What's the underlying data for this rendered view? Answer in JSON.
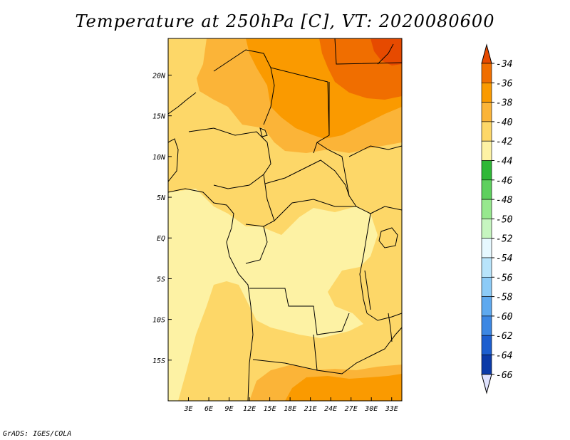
{
  "title": "Temperature at 250hPa [C], VT: 2020080600",
  "credit": "GrADS: IGES/COLA",
  "map": {
    "lon_range": [
      0,
      34.5
    ],
    "lat_range": [
      -20,
      24.5
    ],
    "lon_ticks": [
      {
        "v": 3,
        "label": "3E"
      },
      {
        "v": 6,
        "label": "6E"
      },
      {
        "v": 9,
        "label": "9E"
      },
      {
        "v": 12,
        "label": "12E"
      },
      {
        "v": 15,
        "label": "15E"
      },
      {
        "v": 18,
        "label": "18E"
      },
      {
        "v": 21,
        "label": "21E"
      },
      {
        "v": 24,
        "label": "24E"
      },
      {
        "v": 27,
        "label": "27E"
      },
      {
        "v": 30,
        "label": "30E"
      },
      {
        "v": 33,
        "label": "33E"
      }
    ],
    "lat_ticks": [
      {
        "v": 20,
        "label": "20N"
      },
      {
        "v": 15,
        "label": "15N"
      },
      {
        "v": 10,
        "label": "10N"
      },
      {
        "v": 5,
        "label": "5N"
      },
      {
        "v": 0,
        "label": "EQ"
      },
      {
        "v": -5,
        "label": "5S"
      },
      {
        "v": -10,
        "label": "10S"
      },
      {
        "v": -15,
        "label": "15S"
      }
    ]
  },
  "colorbar": {
    "labels": [
      "-34",
      "-36",
      "-38",
      "-40",
      "-42",
      "-44",
      "-46",
      "-48",
      "-50",
      "-52",
      "-54",
      "-56",
      "-58",
      "-60",
      "-62",
      "-64",
      "-66"
    ],
    "colors": [
      "#e64a00",
      "#f06e00",
      "#fa9a00",
      "#fbb438",
      "#fdd768",
      "#fdf2a4",
      "#2fb837",
      "#5ed05e",
      "#97e88e",
      "#c6f5c0",
      "#e6f8ff",
      "#b8e4fb",
      "#8ccbf7",
      "#5ea9ef",
      "#3c87e3",
      "#1c5ecf",
      "#0b3aa8",
      "#061a6c",
      "#e0e3ff"
    ]
  },
  "fill_colors": {
    "c34": "#e64a00",
    "c36": "#f06e00",
    "c38": "#fa9a00",
    "c40": "#fbb438",
    "c42": "#fdd768",
    "c44": "#fdf2a4"
  }
}
